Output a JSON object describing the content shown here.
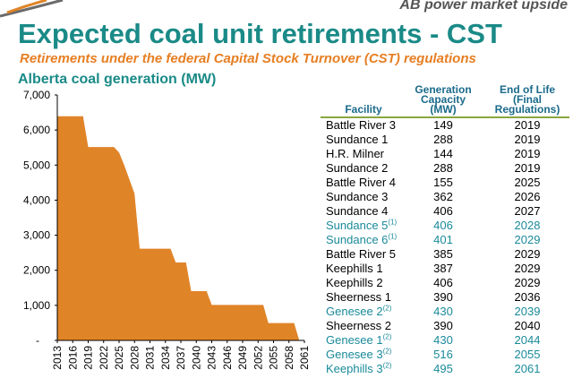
{
  "header": {
    "tag": "AB power market upside"
  },
  "title": "Expected coal unit retirements - CST",
  "subtitle": "Retirements under the federal Capital Stock Turnover (CST) regulations",
  "chart_title": "Alberta coal generation (MW)",
  "colors": {
    "area": "#e08428",
    "title": "#1a8a87",
    "subtitle": "#e67e22",
    "highlight_row": "#1a8a9a",
    "header_rule": "#8aa63d"
  },
  "chart_data": {
    "type": "area",
    "title": "Alberta coal generation (MW)",
    "xlabel": "",
    "ylabel": "",
    "ylim": [
      0,
      7000
    ],
    "yticks": [
      0,
      1000,
      2000,
      3000,
      4000,
      5000,
      6000,
      7000
    ],
    "ytick_labels": [
      "-",
      "1,000",
      "2,000",
      "3,000",
      "4,000",
      "5,000",
      "6,000",
      "7,000"
    ],
    "xlim": [
      2013,
      2061
    ],
    "xtick_labels": [
      "2013",
      "2016",
      "2019",
      "2022",
      "2025",
      "2028",
      "2031",
      "2034",
      "2037",
      "2040",
      "2043",
      "2046",
      "2049",
      "2052",
      "2055",
      "2058",
      "2061"
    ],
    "x": [
      2013,
      2018,
      2019,
      2024,
      2025,
      2026,
      2027,
      2028,
      2029,
      2035,
      2036,
      2038,
      2039,
      2042,
      2043,
      2053,
      2054,
      2059,
      2060
    ],
    "values": [
      6392,
      6392,
      5515,
      5515,
      5360,
      4998,
      4592,
      4186,
      2614,
      2614,
      2224,
      2224,
      1404,
      1404,
      1011,
      1011,
      495,
      495,
      0
    ]
  },
  "table": {
    "headers": {
      "facility": "Facility",
      "capacity": [
        "Generation",
        "Capacity",
        "(MW)"
      ],
      "eol": [
        "End of Life",
        "(Final",
        "Regulations)"
      ]
    },
    "rows": [
      {
        "facility": "Battle River 3",
        "note": "",
        "capacity": "149",
        "eol": "2019",
        "highlight": false
      },
      {
        "facility": "Sundance 1",
        "note": "",
        "capacity": "288",
        "eol": "2019",
        "highlight": false
      },
      {
        "facility": "H.R. Milner",
        "note": "",
        "capacity": "144",
        "eol": "2019",
        "highlight": false
      },
      {
        "facility": "Sundance 2",
        "note": "",
        "capacity": "288",
        "eol": "2019",
        "highlight": false
      },
      {
        "facility": "Battle River 4",
        "note": "",
        "capacity": "155",
        "eol": "2025",
        "highlight": false
      },
      {
        "facility": "Sundance 3",
        "note": "",
        "capacity": "362",
        "eol": "2026",
        "highlight": false
      },
      {
        "facility": "Sundance 4",
        "note": "",
        "capacity": "406",
        "eol": "2027",
        "highlight": false
      },
      {
        "facility": "Sundance 5",
        "note": "(1)",
        "capacity": "406",
        "eol": "2028",
        "highlight": true
      },
      {
        "facility": "Sundance 6",
        "note": "(1)",
        "capacity": "401",
        "eol": "2029",
        "highlight": true
      },
      {
        "facility": "Battle River 5",
        "note": "",
        "capacity": "385",
        "eol": "2029",
        "highlight": false
      },
      {
        "facility": "Keephills 1",
        "note": "",
        "capacity": "387",
        "eol": "2029",
        "highlight": false
      },
      {
        "facility": "Keephills 2",
        "note": "",
        "capacity": "406",
        "eol": "2029",
        "highlight": false
      },
      {
        "facility": "Sheerness 1",
        "note": "",
        "capacity": "390",
        "eol": "2036",
        "highlight": false
      },
      {
        "facility": "Genesee 2",
        "note": "(2)",
        "capacity": "430",
        "eol": "2039",
        "highlight": true
      },
      {
        "facility": "Sheerness 2",
        "note": "",
        "capacity": "390",
        "eol": "2040",
        "highlight": false
      },
      {
        "facility": "Genesee 1",
        "note": "(2)",
        "capacity": "430",
        "eol": "2044",
        "highlight": true
      },
      {
        "facility": "Genesee 3",
        "note": "(2)",
        "capacity": "516",
        "eol": "2055",
        "highlight": true
      },
      {
        "facility": "Keephills 3",
        "note": "(2)",
        "capacity": "495",
        "eol": "2061",
        "highlight": true
      }
    ]
  }
}
